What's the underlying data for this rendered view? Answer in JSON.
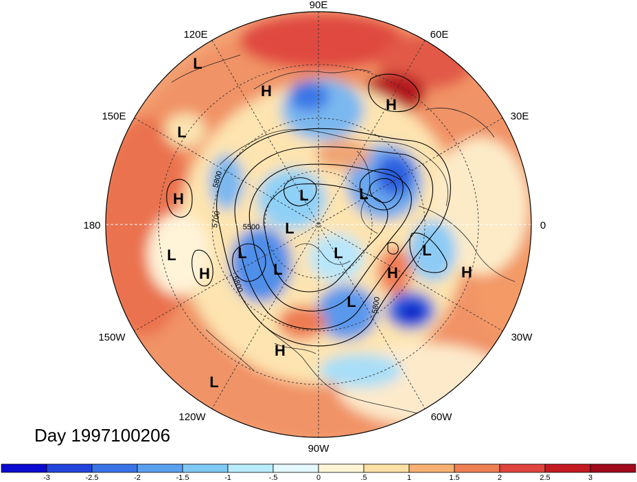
{
  "title_label": "Day 1997100206",
  "longitude_labels": {
    "n": "90E",
    "ne_top": "60E",
    "nw_top": "120E",
    "e": "0",
    "w": "180",
    "ne": "30E",
    "nw": "150E",
    "sw": "150W",
    "se": "30W",
    "sw_bot": "120W",
    "se_bot": "60W",
    "s": "90W"
  },
  "pressure_systems": [
    {
      "type": "L"
    },
    {
      "type": "H"
    },
    {
      "type": "H"
    },
    {
      "type": "L"
    },
    {
      "type": "H"
    },
    {
      "type": "L"
    },
    {
      "type": "L"
    },
    {
      "type": "L"
    },
    {
      "type": "L"
    },
    {
      "type": "H"
    },
    {
      "type": "L"
    },
    {
      "type": "L"
    },
    {
      "type": "L"
    },
    {
      "type": "H"
    },
    {
      "type": "H"
    },
    {
      "type": "L"
    },
    {
      "type": "L"
    },
    {
      "type": "H"
    },
    {
      "type": "L"
    }
  ],
  "contour_labels": [
    "5800",
    "5700",
    "5500",
    "5800",
    "5800"
  ],
  "colorbar": {
    "ticks": [
      "-3",
      "-2.5",
      "-2",
      "-1.5",
      "-1",
      "-.5",
      "0",
      ".5",
      "1",
      "1.5",
      "2",
      "2.5",
      "3"
    ],
    "colors": [
      "#0a0ad0",
      "#2244dd",
      "#3a74e8",
      "#5aa0ee",
      "#80c8f5",
      "#b8ecfb",
      "#e4f8ff",
      "#fff6d8",
      "#fbe0a4",
      "#f6b072",
      "#ee7e54",
      "#e0443e",
      "#c41a22",
      "#a00a1c"
    ]
  }
}
